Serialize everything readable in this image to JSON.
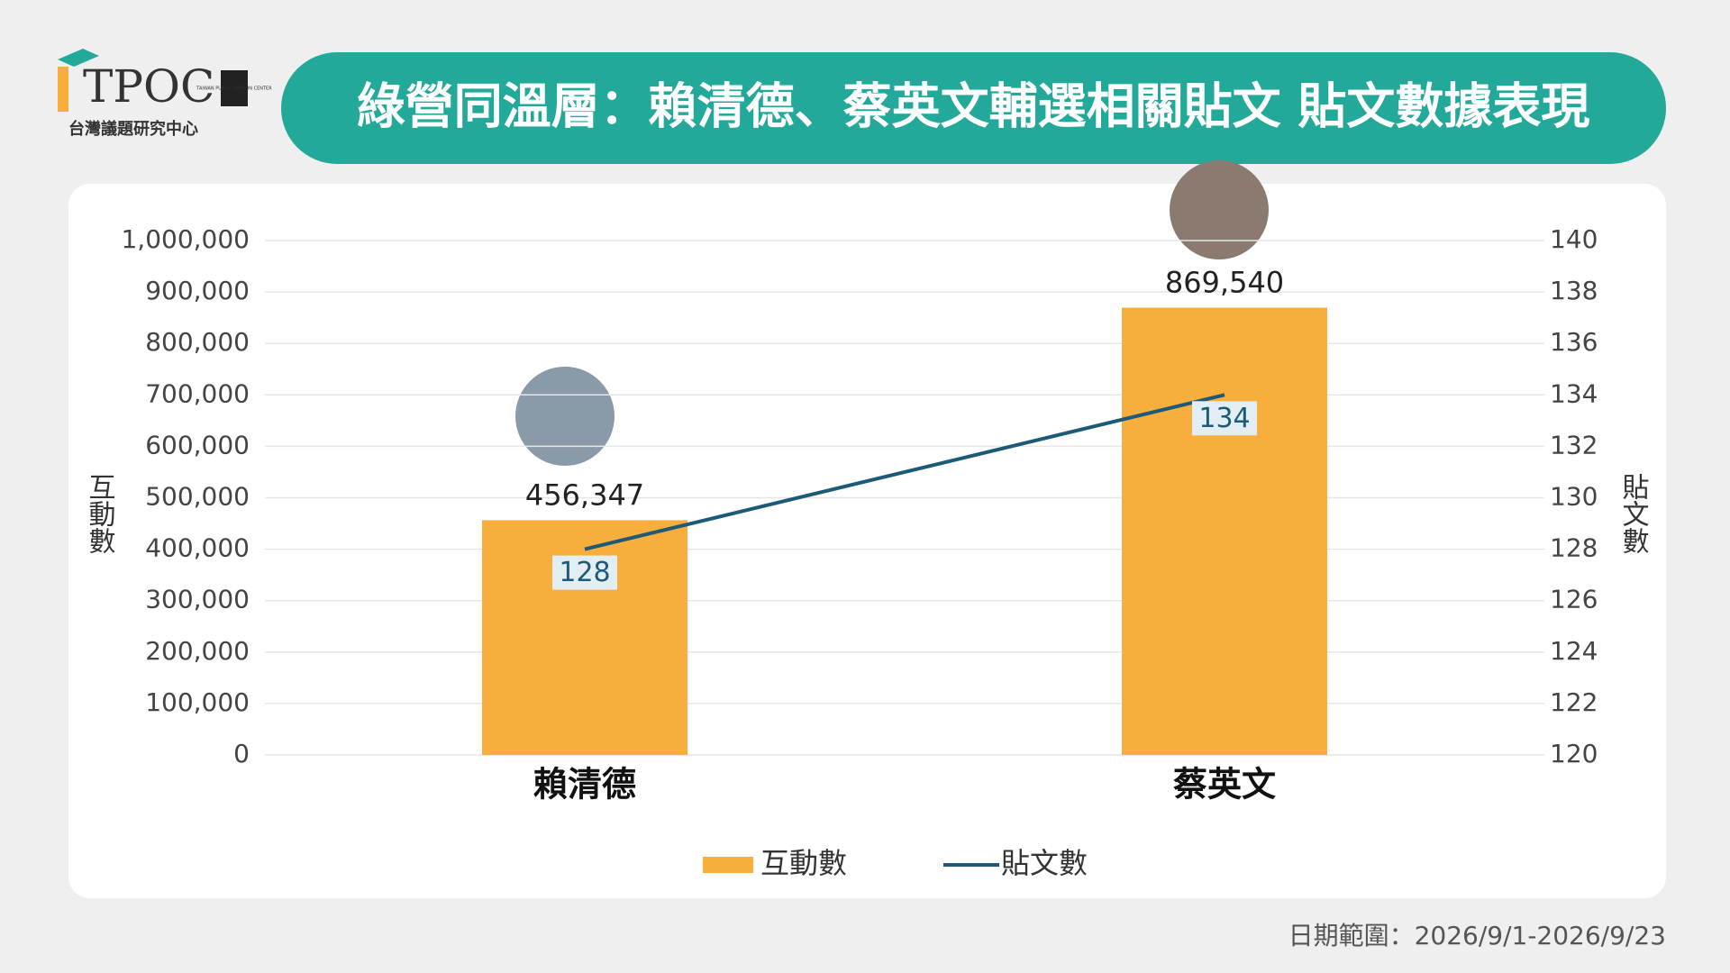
{
  "header": {
    "logo": "TPOC",
    "logo_small": "TAIWAN PUBLIC OPINION CENTER",
    "logo_subtitle": "台灣議題研究中心"
  },
  "chart_data": {
    "type": "bar",
    "title": "綠營同溫層：賴清德、蔡英文輔選相關貼文 貼文數據表現",
    "categories": [
      "賴清德",
      "蔡英文"
    ],
    "ylabel": "互動數",
    "y2label": "貼文數",
    "ylim": [
      0,
      1000000
    ],
    "yticks": [
      0,
      {
        "value": 100000,
        "label": "100,000"
      },
      {
        "value": 200000,
        "label": "200,000"
      },
      {
        "value": 300000,
        "label": "300,000"
      },
      {
        "value": 400000,
        "label": "400,000"
      },
      {
        "value": 500000,
        "label": "500,000"
      },
      {
        "value": 600000,
        "label": "600,000"
      },
      {
        "value": 700000,
        "label": "700,000"
      },
      {
        "value": 800000,
        "label": "800,000"
      },
      {
        "value": 900000,
        "label": "900,000"
      },
      {
        "value": 1000000,
        "label": "1,000,000"
      }
    ],
    "y2lim": [
      120,
      140
    ],
    "y2ticks": [
      120,
      122,
      124,
      126,
      128,
      130,
      132,
      134,
      136,
      138,
      140
    ],
    "grid": true,
    "legend": "bottom",
    "series": [
      {
        "name": "互動數",
        "color": "#f8ae3c",
        "values": [
          456347,
          869540
        ],
        "value_labels": [
          "456,347",
          "869,540"
        ]
      },
      {
        "name": "貼文數",
        "type": "line",
        "axis": "y2",
        "color": "#1d5a78",
        "values": [
          128,
          134
        ]
      }
    ]
  },
  "footer": "日期範圍：2026/9/1-2026/9/23"
}
